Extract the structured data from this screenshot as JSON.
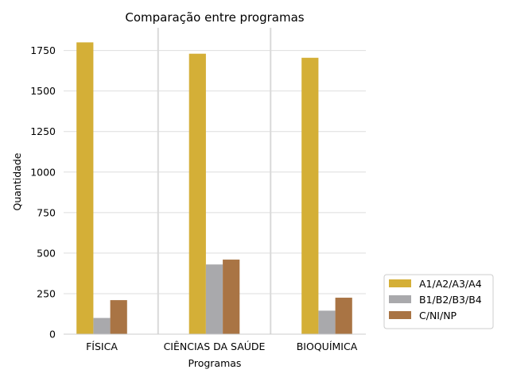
{
  "chart_data": {
    "type": "bar",
    "title": "Comparação entre programas",
    "xlabel": "Programas",
    "ylabel": "Quantidade",
    "categories": [
      "FÍSICA",
      "CIÊNCIAS DA SAÚDE",
      "BIOQUÍMICA"
    ],
    "series": [
      {
        "name": "A1/A2/A3/A4",
        "values": [
          1800,
          1730,
          1705
        ],
        "color": "#d4af37"
      },
      {
        "name": "B1/B2/B3/B4",
        "values": [
          100,
          430,
          145
        ],
        "color": "#a9a9ac"
      },
      {
        "name": "C/NI/NP",
        "values": [
          210,
          460,
          225
        ],
        "color": "#a97444"
      }
    ],
    "ylim": [
      0,
      1890
    ],
    "yticks": [
      0,
      250,
      500,
      750,
      1000,
      1250,
      1500,
      1750
    ],
    "grid": "horizontal",
    "legend_position": "lower-right-outside"
  }
}
